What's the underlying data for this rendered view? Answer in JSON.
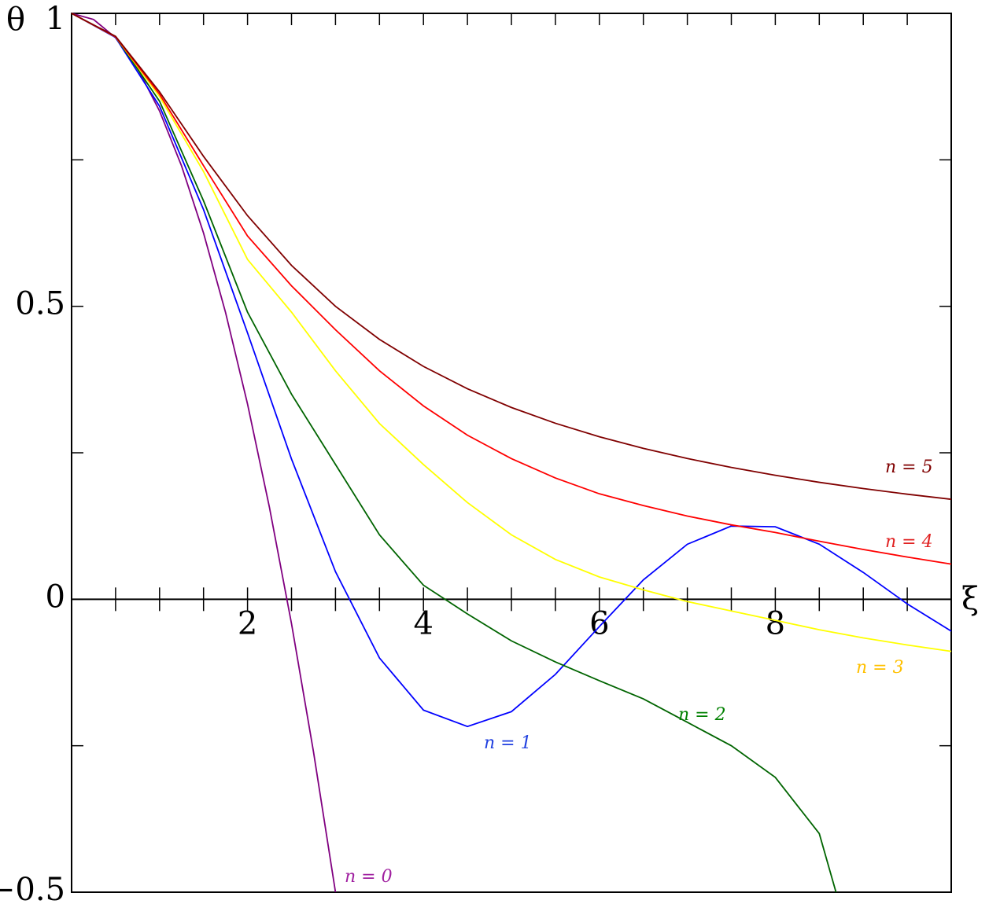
{
  "chart_data": {
    "type": "line",
    "x_label": "ξ",
    "y_label": "θ",
    "xlim": [
      0,
      10
    ],
    "ylim": [
      -0.5,
      1
    ],
    "xticks": [
      2,
      4,
      6,
      8
    ],
    "xticks_minor": [
      0.5,
      1,
      1.5,
      2.5,
      3,
      3.5,
      4.5,
      5,
      5.5,
      6.5,
      7,
      7.5,
      8.5,
      9,
      9.5
    ],
    "yticks": [
      {
        "value": -0.5,
        "label": "−0.5"
      },
      0,
      0.5,
      1
    ],
    "yticks_minor": [
      -0.25,
      0.25,
      0.75
    ],
    "grid": false,
    "series": [
      {
        "name": "n = 0",
        "color": "#800080",
        "label_color": "#a020a0",
        "x": [
          0,
          0.25,
          0.5,
          0.75,
          1,
          1.25,
          1.5,
          1.75,
          2,
          2.25,
          2.5,
          2.75,
          3
        ],
        "values": [
          1,
          0.98958,
          0.95833,
          0.90625,
          0.83333,
          0.73958,
          0.625,
          0.48958,
          0.33333,
          0.15625,
          -0.04167,
          -0.26042,
          -0.5
        ]
      },
      {
        "name": "n = 1",
        "color": "#0000ff",
        "label_color": "#2040e0",
        "x": [
          0,
          0.5,
          1,
          1.5,
          2,
          2.5,
          3,
          3.5,
          4,
          4.5,
          5,
          5.5,
          6,
          6.5,
          7,
          7.5,
          8,
          8.5,
          9,
          9.5,
          10
        ],
        "values": [
          1,
          0.9589,
          0.8415,
          0.665,
          0.4546,
          0.2394,
          0.047,
          -0.1002,
          -0.1892,
          -0.2172,
          -0.1918,
          -0.1282,
          -0.0466,
          0.0331,
          0.0939,
          0.125,
          0.1237,
          0.094,
          0.0458,
          -0.0079,
          -0.0544
        ]
      },
      {
        "name": "n = 2",
        "color": "#006400",
        "label_color": "#008000",
        "x": [
          0,
          0.5,
          1,
          1.5,
          2,
          2.5,
          3,
          3.5,
          4,
          4.5,
          5,
          5.5,
          6,
          6.5,
          7,
          7.5,
          8,
          8.5,
          8.69
        ],
        "values": [
          1,
          0.96,
          0.85,
          0.68,
          0.49,
          0.35,
          0.23,
          0.11,
          0.024,
          -0.025,
          -0.071,
          -0.107,
          -0.139,
          -0.17,
          -0.21,
          -0.25,
          -0.304,
          -0.4,
          -0.5
        ]
      },
      {
        "name": "n = 3",
        "color": "#ffff00",
        "label_color": "#ffc000",
        "x": [
          0,
          0.5,
          1,
          1.5,
          2,
          2.5,
          3,
          3.5,
          4,
          4.5,
          5,
          5.5,
          6,
          6.5,
          7,
          7.5,
          8,
          8.5,
          9,
          9.5,
          10
        ],
        "values": [
          1,
          0.96,
          0.858,
          0.73,
          0.58,
          0.49,
          0.39,
          0.3,
          0.23,
          0.165,
          0.11,
          0.068,
          0.038,
          0.016,
          -0.004,
          -0.02,
          -0.036,
          -0.052,
          -0.066,
          -0.078,
          -0.089
        ]
      },
      {
        "name": "n = 4",
        "color": "#ff0000",
        "label_color": "#e02020",
        "x": [
          0,
          0.5,
          1,
          1.5,
          2,
          2.5,
          3,
          3.5,
          4,
          4.5,
          5,
          5.5,
          6,
          6.5,
          7,
          7.5,
          8,
          8.5,
          9,
          9.5,
          10
        ],
        "values": [
          1,
          0.96,
          0.862,
          0.74,
          0.62,
          0.535,
          0.46,
          0.39,
          0.33,
          0.28,
          0.24,
          0.207,
          0.18,
          0.16,
          0.142,
          0.127,
          0.114,
          0.099,
          0.085,
          0.072,
          0.06
        ]
      },
      {
        "name": "n = 5",
        "color": "#800000",
        "label_color": "#800000",
        "x": [
          0,
          0.5,
          1,
          1.5,
          2,
          2.5,
          3,
          3.5,
          4,
          4.5,
          5,
          5.5,
          6,
          6.5,
          7,
          7.5,
          8,
          8.5,
          9,
          9.5,
          10
        ],
        "values": [
          1,
          0.9608,
          0.866,
          0.7559,
          0.6547,
          0.5698,
          0.5,
          0.4435,
          0.3974,
          0.3592,
          0.3273,
          0.3004,
          0.2774,
          0.2576,
          0.2402,
          0.225,
          0.2116,
          0.1996,
          0.189,
          0.1793,
          0.1706
        ]
      }
    ]
  }
}
